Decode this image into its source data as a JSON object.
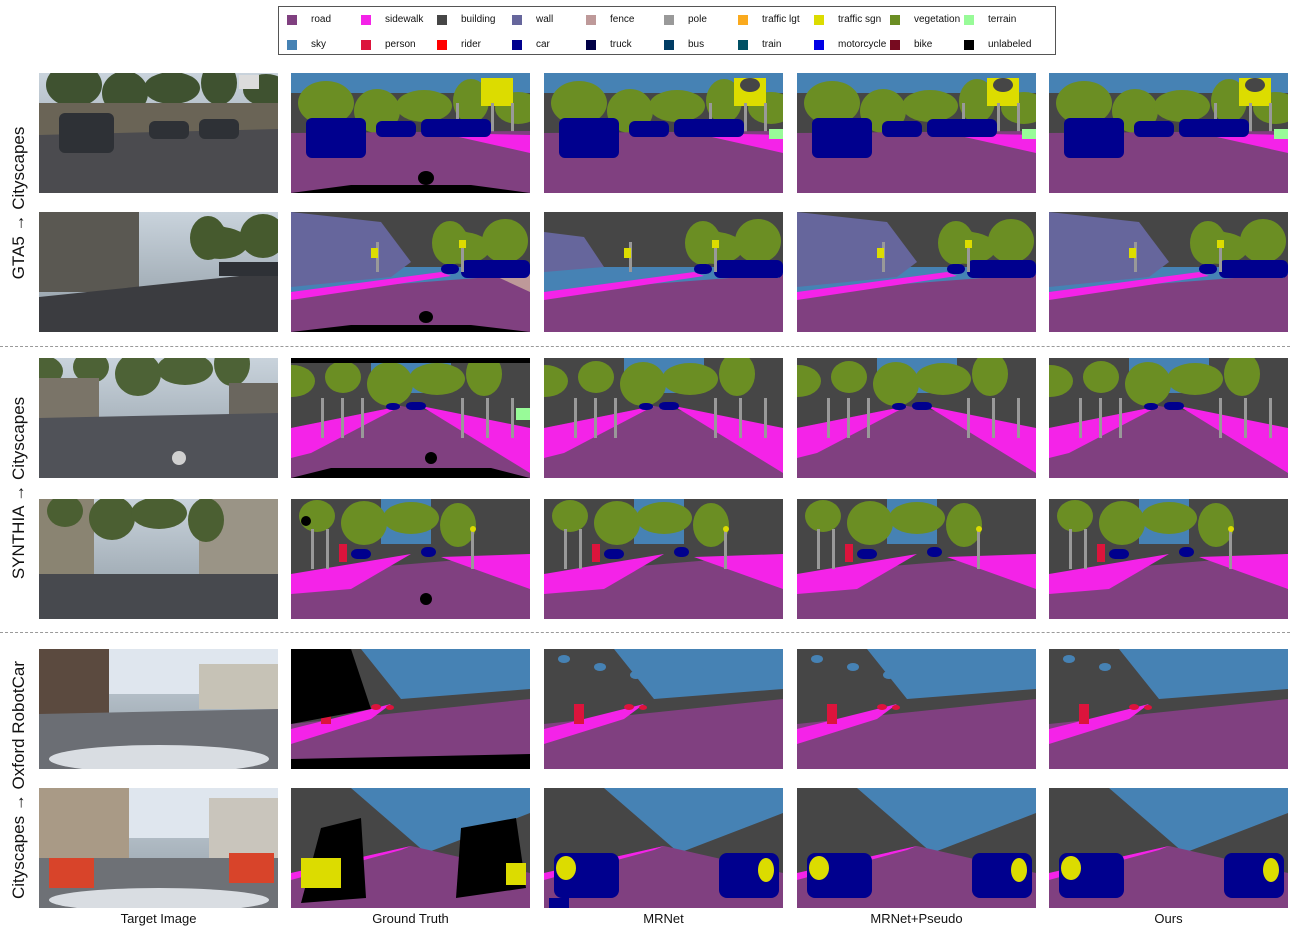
{
  "legend": [
    {
      "label": "road",
      "color": "#804080"
    },
    {
      "label": "sidewalk",
      "color": "#f423e8"
    },
    {
      "label": "building",
      "color": "#464646"
    },
    {
      "label": "wall",
      "color": "#66669c"
    },
    {
      "label": "fence",
      "color": "#be9999"
    },
    {
      "label": "pole",
      "color": "#999999"
    },
    {
      "label": "traffic lgt",
      "color": "#faaa1e"
    },
    {
      "label": "traffic sgn",
      "color": "#dcdc00"
    },
    {
      "label": "vegetation",
      "color": "#6b8e23"
    },
    {
      "label": "terrain",
      "color": "#98fb98"
    },
    {
      "label": "sky",
      "color": "#4682b4"
    },
    {
      "label": "person",
      "color": "#dc143c"
    },
    {
      "label": "rider",
      "color": "#ff0000"
    },
    {
      "label": "car",
      "color": "#00008e"
    },
    {
      "label": "truck",
      "color": "#000046"
    },
    {
      "label": "bus",
      "color": "#003c64"
    },
    {
      "label": "train",
      "color": "#005064"
    },
    {
      "label": "motorcycle",
      "color": "#0000e6"
    },
    {
      "label": "bike",
      "color": "#770b20"
    },
    {
      "label": "unlabeled",
      "color": "#000000"
    }
  ],
  "sections": [
    {
      "label": "GTA5 → Cityscapes"
    },
    {
      "label": "SYNTHIA → Cityscapes"
    },
    {
      "label": "Cityscapes → Oxford RobotCar"
    }
  ],
  "columns": [
    {
      "label": "Target Image"
    },
    {
      "label": "Ground Truth"
    },
    {
      "label": "MRNet"
    },
    {
      "label": "MRNet+Pseudo"
    },
    {
      "label": "Ours"
    }
  ]
}
